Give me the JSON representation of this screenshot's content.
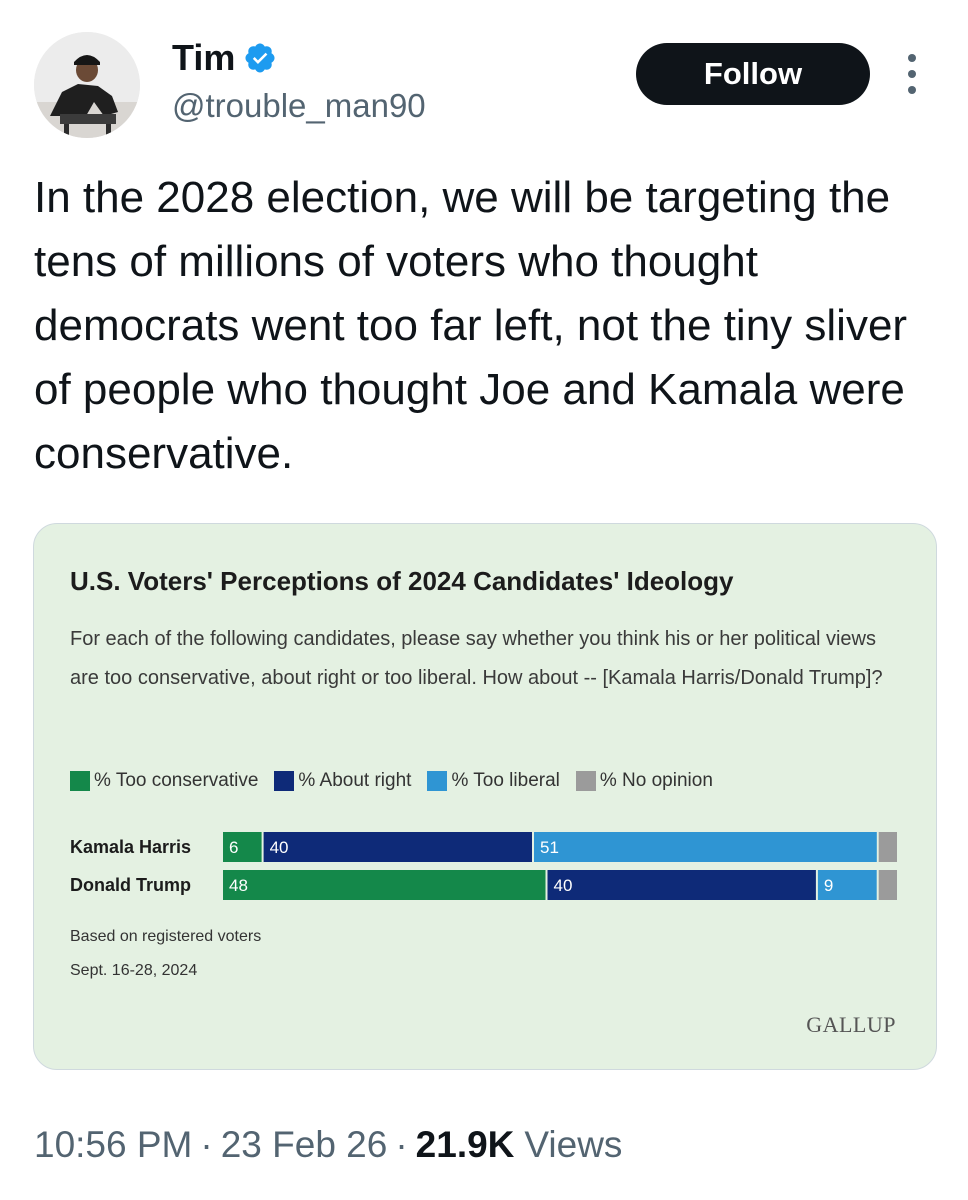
{
  "author": {
    "name": "Tim",
    "handle": "@trouble_man90",
    "verified_color": "#1d9bf0"
  },
  "actions": {
    "follow_label": "Follow",
    "more_icon": "more-vertical-icon"
  },
  "tweet": {
    "text": "In the 2028 election, we will be targeting the tens of millions of voters who thought democrats went too far left, not the tiny sliver of people who thought Joe and Kamala were conservative."
  },
  "media": {
    "chart_title": "U.S. Voters' Perceptions of 2024 Candidates' Ideology",
    "chart_subtitle": "For each of the following candidates, please say whether you think his or her political views are too conservative, about right or too liberal. How about -- [Kamala Harris/Donald Trump]?",
    "footnote_1": "Based on registered voters",
    "footnote_2": "Sept. 16-28, 2024",
    "source_logo": "GALLUP",
    "background_color": "#e4f1e2"
  },
  "chart_data": {
    "type": "bar",
    "orientation": "horizontal",
    "stacked": true,
    "title": "U.S. Voters' Perceptions of 2024 Candidates' Ideology",
    "categories": [
      "Kamala Harris",
      "Donald Trump"
    ],
    "series": [
      {
        "name": "% Too conservative",
        "color": "#14884a",
        "values": [
          6,
          48
        ],
        "labels": [
          "6",
          "48"
        ]
      },
      {
        "name": "% About right",
        "color": "#0e2a78",
        "values": [
          40,
          40
        ],
        "labels": [
          "40",
          "40"
        ]
      },
      {
        "name": "% Too liberal",
        "color": "#2f95d3",
        "values": [
          51,
          9
        ],
        "labels": [
          "51",
          "9"
        ]
      },
      {
        "name": "% No opinion",
        "color": "#9b9b9b",
        "values": [
          3,
          3
        ],
        "labels": [
          "",
          ""
        ]
      }
    ],
    "xlim": [
      0,
      100
    ],
    "legend_position": "top-left"
  },
  "meta": {
    "time": "10:56 PM",
    "separator": "·",
    "date": "23 Feb 26",
    "views_count": "21.9K",
    "views_label": "Views"
  }
}
